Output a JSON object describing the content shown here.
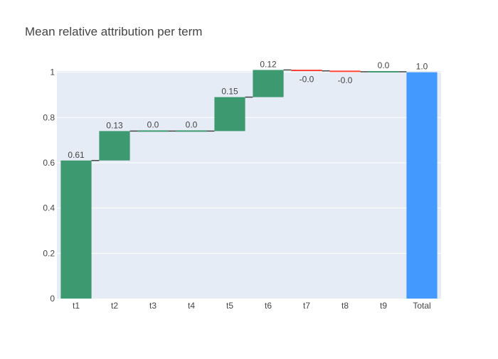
{
  "chart_data": {
    "type": "waterfall",
    "title": "Mean relative attribution per term",
    "xlabel": "",
    "ylabel": "",
    "categories": [
      "t1",
      "t2",
      "t3",
      "t4",
      "t5",
      "t6",
      "t7",
      "t8",
      "t9",
      "Total"
    ],
    "values": [
      0.61,
      0.13,
      0.0,
      0.0,
      0.15,
      0.12,
      -0.004,
      -0.004,
      0.0,
      1.0
    ],
    "measures": [
      "relative",
      "relative",
      "relative",
      "relative",
      "relative",
      "relative",
      "relative",
      "relative",
      "relative",
      "total"
    ],
    "value_labels": [
      "0.61",
      "0.13",
      "0.0",
      "0.0",
      "0.15",
      "0.12",
      "-0.0",
      "-0.0",
      "0.0",
      "1.0"
    ],
    "ylim": [
      0,
      1.005
    ],
    "yticks": [
      0,
      0.2,
      0.4,
      0.6,
      0.8,
      1
    ],
    "ytick_labels": [
      "0",
      "0.2",
      "0.4",
      "0.6",
      "0.8",
      "1"
    ],
    "grid": true,
    "legend": "none",
    "colors": {
      "increasing": "#3D9970",
      "decreasing": "#FF4136",
      "total": "#4499FF",
      "plot_background": "#E5ECF6",
      "gridline": "#FFFFFF",
      "connector": "#444444",
      "text": "#444444"
    }
  }
}
